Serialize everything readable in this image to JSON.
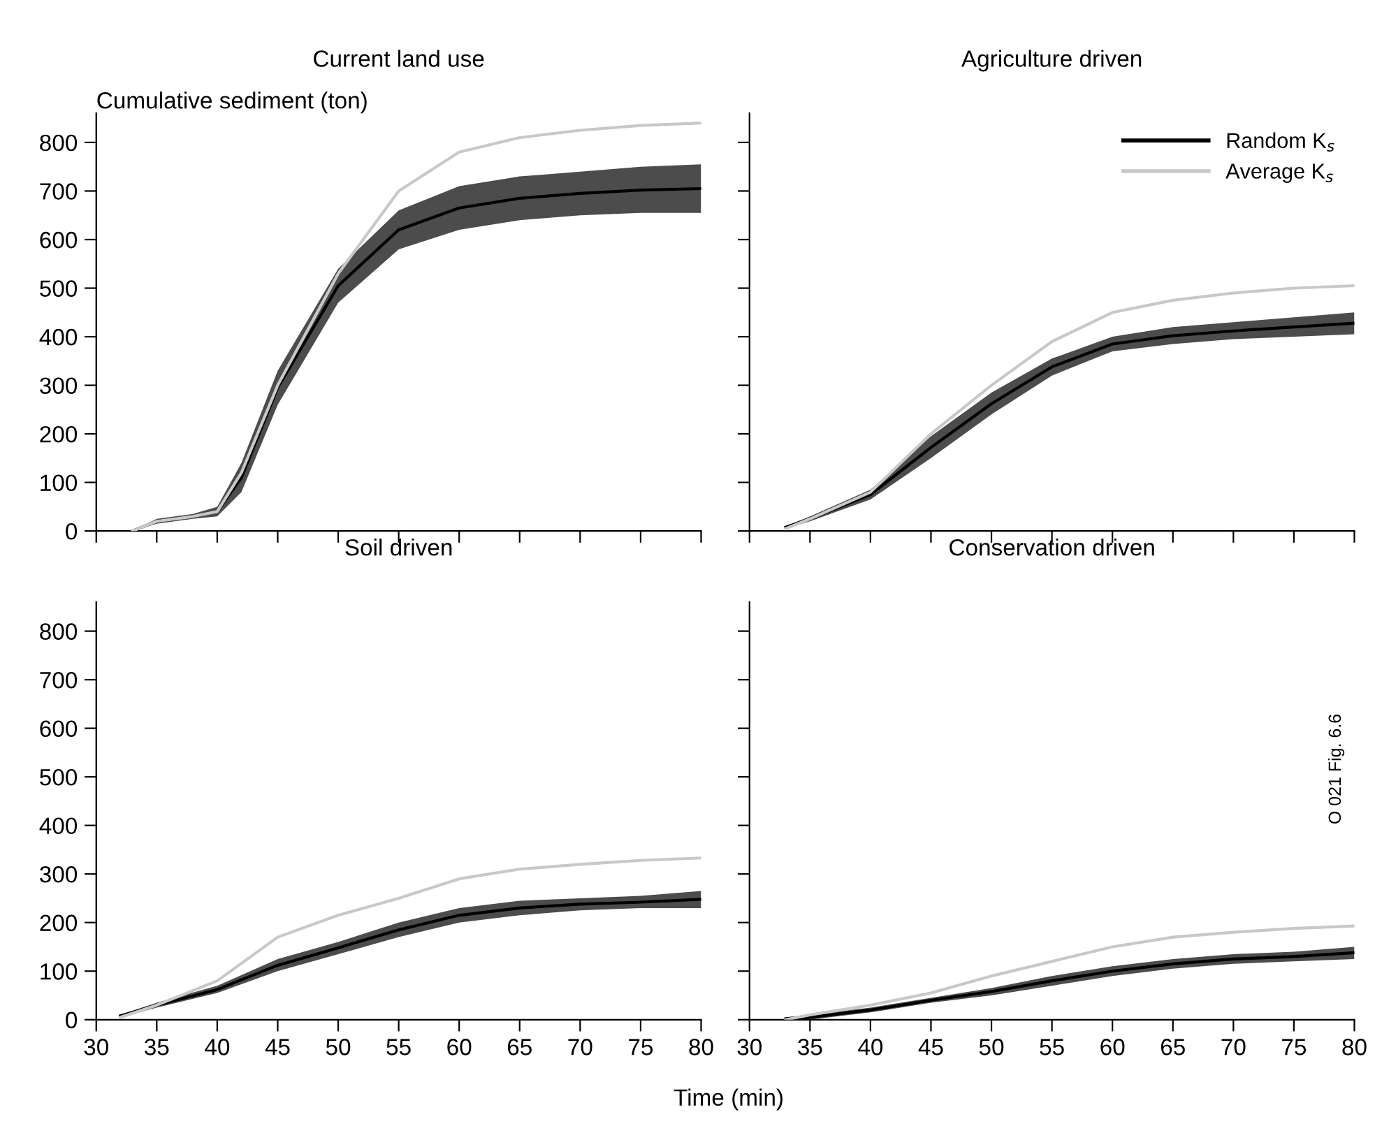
{
  "chart_data": [
    {
      "type": "line",
      "title": "Current land use",
      "ylabel": "Cumulative sediment (ton)",
      "xlim": [
        30,
        80
      ],
      "xticks": [
        30,
        35,
        40,
        45,
        50,
        55,
        60,
        65,
        70,
        75,
        80
      ],
      "ylim": [
        0,
        860
      ],
      "yticks": [
        0,
        100,
        200,
        300,
        400,
        500,
        600,
        700,
        800
      ],
      "tick_labels": "y",
      "grid": false,
      "x": [
        33,
        35,
        38,
        40,
        42,
        45,
        50,
        55,
        60,
        65,
        70,
        75,
        80
      ],
      "series": [
        {
          "color": "#000000",
          "values": [
            0,
            20,
            30,
            40,
            110,
            295,
            505,
            620,
            665,
            685,
            695,
            702,
            705
          ],
          "lower": [
            0,
            15,
            25,
            30,
            80,
            260,
            470,
            580,
            620,
            640,
            650,
            655,
            655
          ],
          "upper": [
            0,
            25,
            35,
            50,
            140,
            330,
            540,
            660,
            710,
            730,
            740,
            750,
            755
          ]
        },
        {
          "color": "#c8c8c8",
          "values": [
            0,
            20,
            30,
            40,
            120,
            300,
            530,
            700,
            780,
            810,
            825,
            835,
            840
          ]
        }
      ]
    },
    {
      "type": "line",
      "title": "Agriculture driven",
      "xlim": [
        30,
        80
      ],
      "xticks": [
        30,
        35,
        40,
        45,
        50,
        55,
        60,
        65,
        70,
        75,
        80
      ],
      "ylim": [
        0,
        860
      ],
      "yticks": [
        0,
        100,
        200,
        300,
        400,
        500,
        600,
        700,
        800
      ],
      "tick_labels": false,
      "grid": false,
      "legend": "top right",
      "x": [
        33,
        35,
        40,
        45,
        50,
        55,
        60,
        65,
        70,
        75,
        80
      ],
      "series": [
        {
          "name": "Random K$_{s}$",
          "color": "#000000",
          "values": [
            8,
            25,
            75,
            172,
            262,
            338,
            385,
            402,
            412,
            420,
            428
          ],
          "lower": [
            5,
            20,
            65,
            150,
            240,
            320,
            370,
            385,
            395,
            400,
            405
          ],
          "upper": [
            10,
            30,
            85,
            195,
            285,
            355,
            400,
            420,
            430,
            440,
            450
          ]
        },
        {
          "name": "Average K$_{s}$",
          "color": "#c8c8c8",
          "values": [
            5,
            25,
            80,
            200,
            300,
            390,
            450,
            475,
            490,
            500,
            505
          ]
        }
      ]
    },
    {
      "type": "line",
      "title": "Soil driven",
      "xlim": [
        30,
        80
      ],
      "xticks": [
        30,
        35,
        40,
        45,
        50,
        55,
        60,
        65,
        70,
        75,
        80
      ],
      "ylim": [
        0,
        860
      ],
      "yticks": [
        0,
        100,
        200,
        300,
        400,
        500,
        600,
        700,
        800
      ],
      "grid": false,
      "x": [
        32,
        35,
        40,
        45,
        50,
        55,
        60,
        65,
        70,
        75,
        80
      ],
      "series": [
        {
          "color": "#000000",
          "values": [
            8,
            30,
            62,
            112,
            148,
            185,
            215,
            230,
            238,
            242,
            248
          ],
          "lower": [
            5,
            25,
            55,
            100,
            135,
            170,
            200,
            215,
            225,
            230,
            230
          ],
          "upper": [
            10,
            35,
            70,
            125,
            160,
            200,
            230,
            245,
            250,
            255,
            265
          ]
        },
        {
          "color": "#c8c8c8",
          "values": [
            5,
            30,
            80,
            170,
            215,
            250,
            290,
            310,
            320,
            328,
            333
          ]
        }
      ]
    },
    {
      "type": "line",
      "title": "Conservation driven",
      "xlabel": "Time (min)",
      "xlim": [
        30,
        80
      ],
      "xticks": [
        30,
        35,
        40,
        45,
        50,
        55,
        60,
        65,
        70,
        75,
        80
      ],
      "ylim": [
        0,
        860
      ],
      "yticks": [
        0,
        100,
        200,
        300,
        400,
        500,
        600,
        700,
        800
      ],
      "tick_labels": "x",
      "grid": false,
      "x": [
        33,
        35,
        40,
        45,
        50,
        55,
        60,
        65,
        70,
        75,
        80
      ],
      "annotations": [
        "O 021 Fig. 6.6"
      ],
      "series": [
        {
          "color": "#000000",
          "values": [
            2,
            5,
            20,
            40,
            58,
            80,
            100,
            115,
            125,
            130,
            138
          ],
          "lower": [
            0,
            0,
            15,
            35,
            50,
            70,
            90,
            105,
            115,
            120,
            125
          ],
          "upper": [
            5,
            10,
            25,
            45,
            65,
            90,
            110,
            125,
            135,
            140,
            150
          ]
        },
        {
          "color": "#c8c8c8",
          "values": [
            0,
            10,
            30,
            55,
            90,
            120,
            150,
            170,
            180,
            188,
            193
          ]
        }
      ]
    }
  ]
}
